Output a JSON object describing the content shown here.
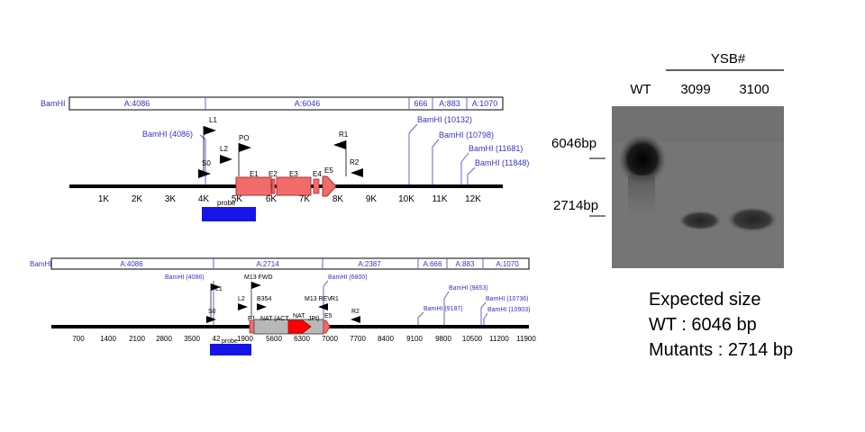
{
  "map1": {
    "bamhi_label": "BamHI",
    "segments": [
      "A:4086",
      "A:6046",
      "666",
      "A:883",
      "A:1070"
    ],
    "sites": [
      "BamHI (4086)",
      "BamHI (10132)",
      "BamHI (10798)",
      "BamHI (11681)",
      "BamHI (11848)"
    ],
    "primers": [
      "L1",
      "L2",
      "PO",
      "R1",
      "R2",
      "S0"
    ],
    "exons": [
      "E1",
      "E2",
      "E3",
      "E4",
      "E5"
    ],
    "ticks": [
      "1K",
      "2K",
      "3K",
      "4K",
      "5K",
      "6K",
      "7K",
      "8K",
      "9K",
      "10K",
      "11K",
      "12K"
    ],
    "probe": "probe"
  },
  "map2": {
    "bamhi_label": "BamHI",
    "segments": [
      "A:4086",
      "A:2714",
      "A:2387",
      "A:666",
      "A:883",
      "A:1070"
    ],
    "sites": [
      "BamHI (4086)",
      "BamHI (6800)",
      "BamHI (9853)",
      "BamHI (9187)",
      "BamHI (10736)",
      "BamHI (10903)"
    ],
    "primers": [
      "L1",
      "L2",
      "S0",
      "M13 FWD",
      "B354",
      "M13 REV",
      "R1",
      "R2",
      "E1",
      "E5"
    ],
    "nat_label": "NAT (ACT",
    "nat_label2": "JPt)",
    "nat_top": "NAT",
    "ticks": [
      "700",
      "1400",
      "2100",
      "2800",
      "3500",
      "42",
      "1900",
      "5600",
      "6300",
      "7000",
      "7700",
      "8400",
      "9100",
      "9800",
      "10500",
      "11200",
      "11900"
    ],
    "probe": "probe"
  },
  "gel": {
    "group_label": "YSB#",
    "lanes": [
      "WT",
      "3099",
      "3100"
    ],
    "markers": [
      "6046bp",
      "2714bp"
    ]
  },
  "expected": {
    "title": "Expected size",
    "wt": "WT : 6046 bp",
    "mutants": "Mutants : 2714 bp"
  }
}
